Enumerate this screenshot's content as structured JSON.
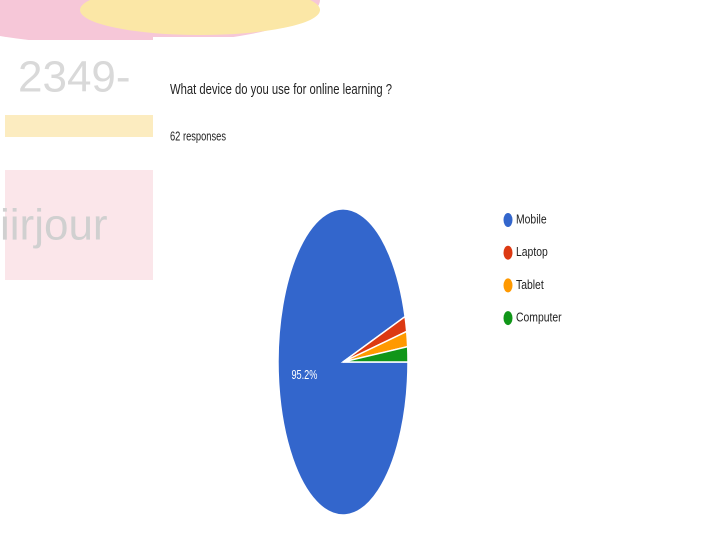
{
  "watermark_texts": [
    "2349-",
    "iirjour"
  ],
  "chart_data": {
    "type": "pie",
    "title": "What device do you use for online learning ?",
    "subtitle": "62 responses",
    "categories": [
      "Mobile",
      "Laptop",
      "Tablet",
      "Computer"
    ],
    "values": [
      95.2,
      1.6,
      1.6,
      1.6
    ],
    "value_labels": [
      "95.2%",
      null,
      null,
      null
    ],
    "colors": [
      "#3366cc",
      "#dc3912",
      "#ff9900",
      "#109618"
    ],
    "legend": "right"
  }
}
